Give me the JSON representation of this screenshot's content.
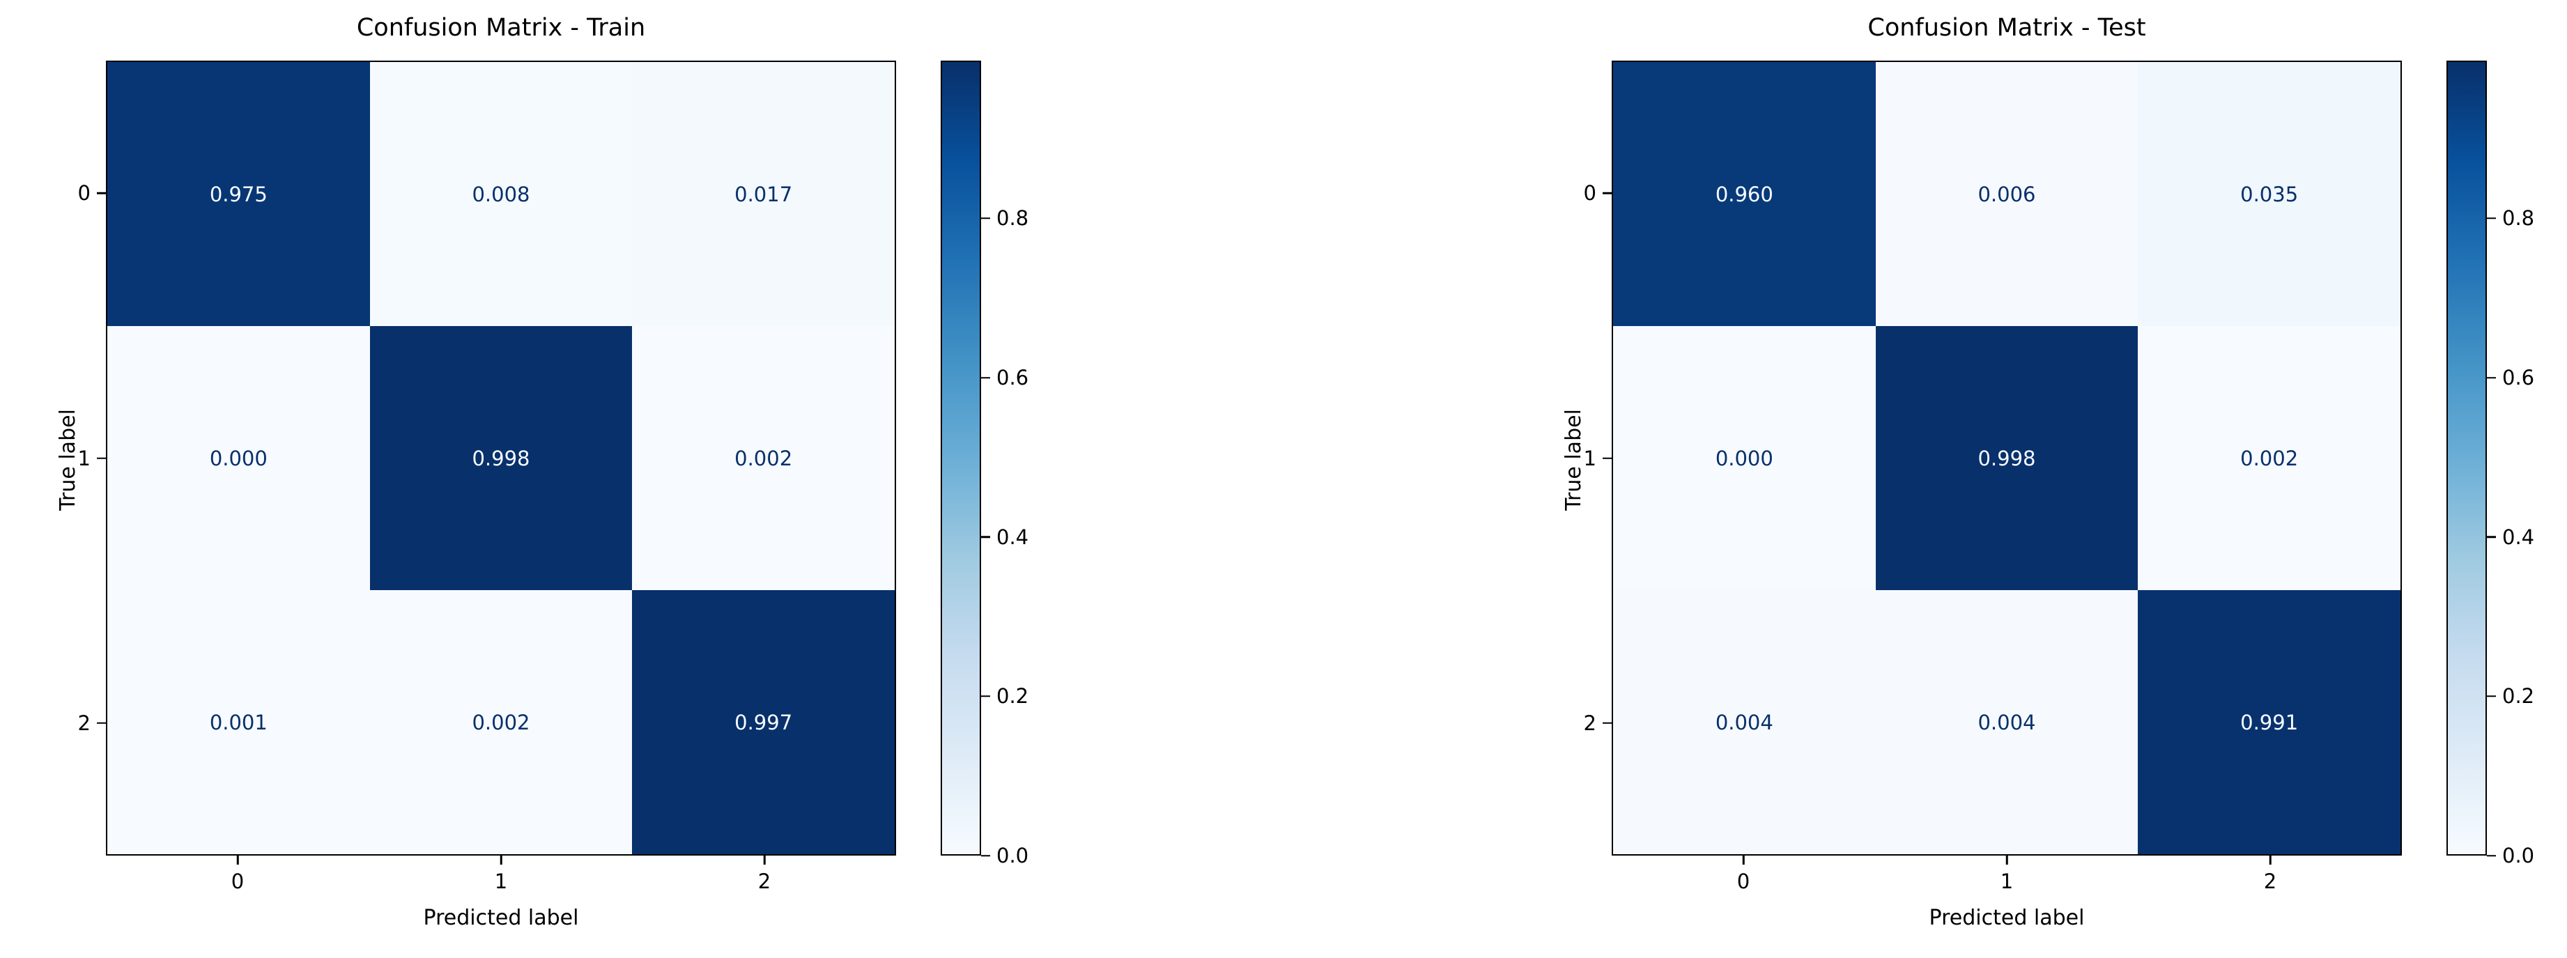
{
  "page": {
    "background": "#ffffff"
  },
  "colors": {
    "cmap_low": "#f7fbff",
    "cmap_high": "#08306b",
    "text_on_dark_cell": "#f7fbff",
    "text_on_light_cell": "#08306b",
    "axis": "#000000"
  },
  "chart_data": [
    {
      "type": "heatmap",
      "title": "Confusion Matrix - Train",
      "xlabel": "Predicted label",
      "ylabel": "True label",
      "x_tick_labels": [
        "0",
        "1",
        "2"
      ],
      "y_tick_labels": [
        "0",
        "1",
        "2"
      ],
      "matrix": [
        [
          0.975,
          0.008,
          0.017
        ],
        [
          0.0,
          0.998,
          0.002
        ],
        [
          0.001,
          0.002,
          0.997
        ]
      ],
      "value_decimals": 3,
      "colormap": "Blues",
      "vmin": 0.0,
      "vmax": 0.998,
      "colorbar_ticks": [
        0.0,
        0.2,
        0.4,
        0.6,
        0.8
      ],
      "colorbar_tick_decimals": 1,
      "legend_position": "colorbar-right",
      "grid": false
    },
    {
      "type": "heatmap",
      "title": "Confusion Matrix - Test",
      "xlabel": "Predicted label",
      "ylabel": "True label",
      "x_tick_labels": [
        "0",
        "1",
        "2"
      ],
      "y_tick_labels": [
        "0",
        "1",
        "2"
      ],
      "matrix": [
        [
          0.96,
          0.006,
          0.035
        ],
        [
          0.0,
          0.998,
          0.002
        ],
        [
          0.004,
          0.004,
          0.991
        ]
      ],
      "value_decimals": 3,
      "colormap": "Blues",
      "vmin": 0.0,
      "vmax": 0.998,
      "colorbar_ticks": [
        0.0,
        0.2,
        0.4,
        0.6,
        0.8
      ],
      "colorbar_tick_decimals": 1,
      "legend_position": "colorbar-right",
      "grid": false
    }
  ]
}
